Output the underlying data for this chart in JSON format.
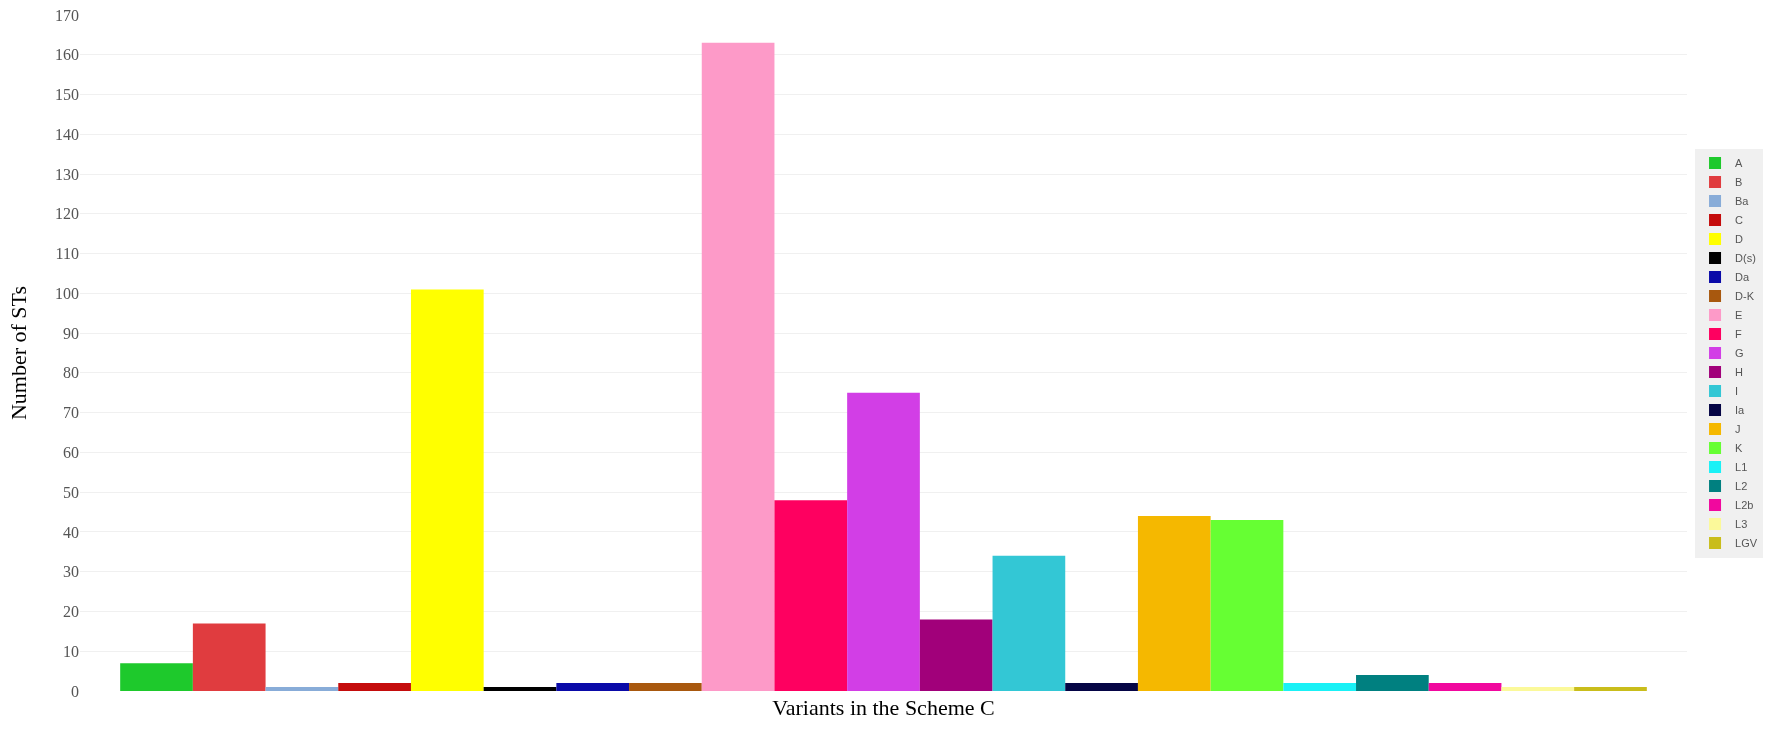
{
  "chart_data": {
    "type": "bar",
    "xlabel": "Variants in the Scheme C",
    "ylabel": "Number of STs",
    "categories": [
      null
    ],
    "ylim": [
      0,
      170
    ],
    "yticks": [
      0,
      10,
      20,
      30,
      40,
      50,
      60,
      70,
      80,
      90,
      100,
      110,
      120,
      130,
      140,
      150,
      160,
      170
    ],
    "grid": "y",
    "legend": "right",
    "series": [
      {
        "name": "A",
        "color": "#1ec92c",
        "values": [
          7
        ]
      },
      {
        "name": "B",
        "color": "#e03c3f",
        "values": [
          17
        ]
      },
      {
        "name": "Ba",
        "color": "#88acd8",
        "values": [
          1
        ]
      },
      {
        "name": "C",
        "color": "#c40c0c",
        "values": [
          2
        ]
      },
      {
        "name": "D",
        "color": "#ffff00",
        "values": [
          101
        ]
      },
      {
        "name": "D(s)",
        "color": "#000000",
        "values": [
          1
        ]
      },
      {
        "name": "Da",
        "color": "#0a0aa8",
        "values": [
          2
        ]
      },
      {
        "name": "D-K",
        "color": "#a8580e",
        "values": [
          2
        ]
      },
      {
        "name": "E",
        "color": "#fd9ac8",
        "values": [
          163
        ]
      },
      {
        "name": "F",
        "color": "#fe0060",
        "values": [
          48
        ]
      },
      {
        "name": "G",
        "color": "#d23ee6",
        "values": [
          75
        ]
      },
      {
        "name": "H",
        "color": "#a1007a",
        "values": [
          18
        ]
      },
      {
        "name": "I",
        "color": "#33c7d5",
        "values": [
          34
        ]
      },
      {
        "name": "Ia",
        "color": "#050545",
        "values": [
          2
        ]
      },
      {
        "name": "J",
        "color": "#f5b800",
        "values": [
          44
        ]
      },
      {
        "name": "K",
        "color": "#66ff33",
        "values": [
          43
        ]
      },
      {
        "name": "L1",
        "color": "#1af1f6",
        "values": [
          2
        ]
      },
      {
        "name": "L2",
        "color": "#008080",
        "values": [
          4
        ]
      },
      {
        "name": "L2b",
        "color": "#f1089e",
        "values": [
          2
        ]
      },
      {
        "name": "L3",
        "color": "#fbf99a",
        "values": [
          1
        ]
      },
      {
        "name": "LGV",
        "color": "#c9bd1b",
        "values": [
          1
        ]
      }
    ]
  }
}
